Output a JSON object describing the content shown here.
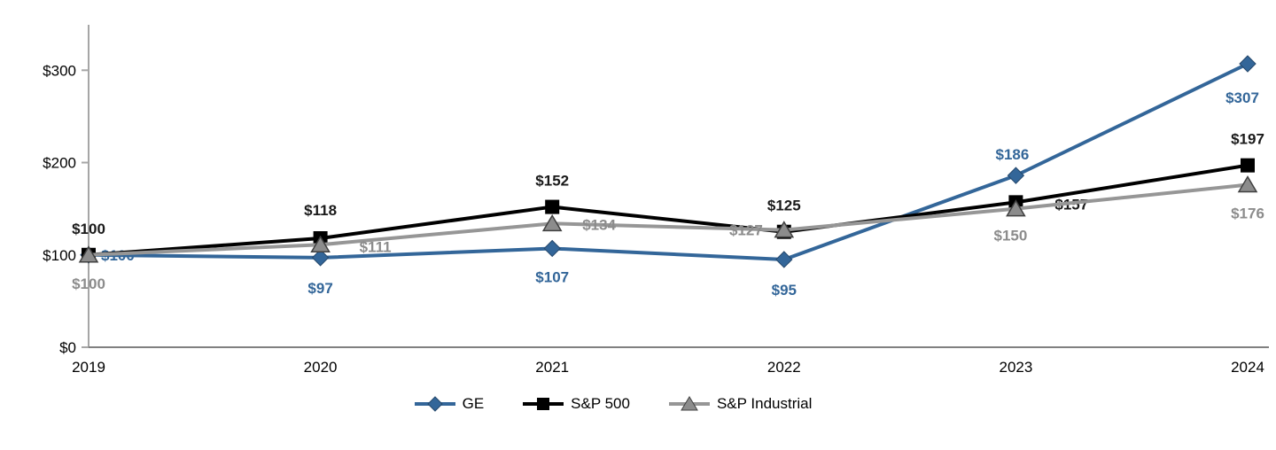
{
  "chart_data": {
    "type": "line",
    "title": "",
    "categories": [
      "2019",
      "2020",
      "2021",
      "2022",
      "2023",
      "2024"
    ],
    "y_ticks": [
      "$0",
      "$100",
      "$200",
      "$300"
    ],
    "y_tick_values": [
      0,
      100,
      200,
      300
    ],
    "ylim": [
      0,
      330
    ],
    "grid": false,
    "legend_position": "bottom",
    "series": [
      {
        "name": "GE",
        "color": "#336699",
        "label_color": "#336699",
        "marker": "diamond",
        "values": [
          100,
          97,
          107,
          95,
          186,
          307
        ],
        "point_labels": [
          "$100",
          "$97",
          "$107",
          "$95",
          "$186",
          "$307"
        ]
      },
      {
        "name": "S&P 500",
        "color": "#000000",
        "label_color": "#1a1a1a",
        "marker": "square",
        "values": [
          100,
          118,
          152,
          125,
          157,
          197
        ],
        "point_labels": [
          "$100",
          "$118",
          "$152",
          "$125",
          "$157",
          "$197"
        ]
      },
      {
        "name": "S&P Industrial",
        "color": "#969696",
        "label_color": "#8C8C8C",
        "marker": "triangle",
        "values": [
          100,
          111,
          134,
          127,
          150,
          176
        ],
        "point_labels": [
          "$100",
          "$111",
          "$134",
          "$127",
          "$150",
          "$176"
        ]
      }
    ]
  }
}
